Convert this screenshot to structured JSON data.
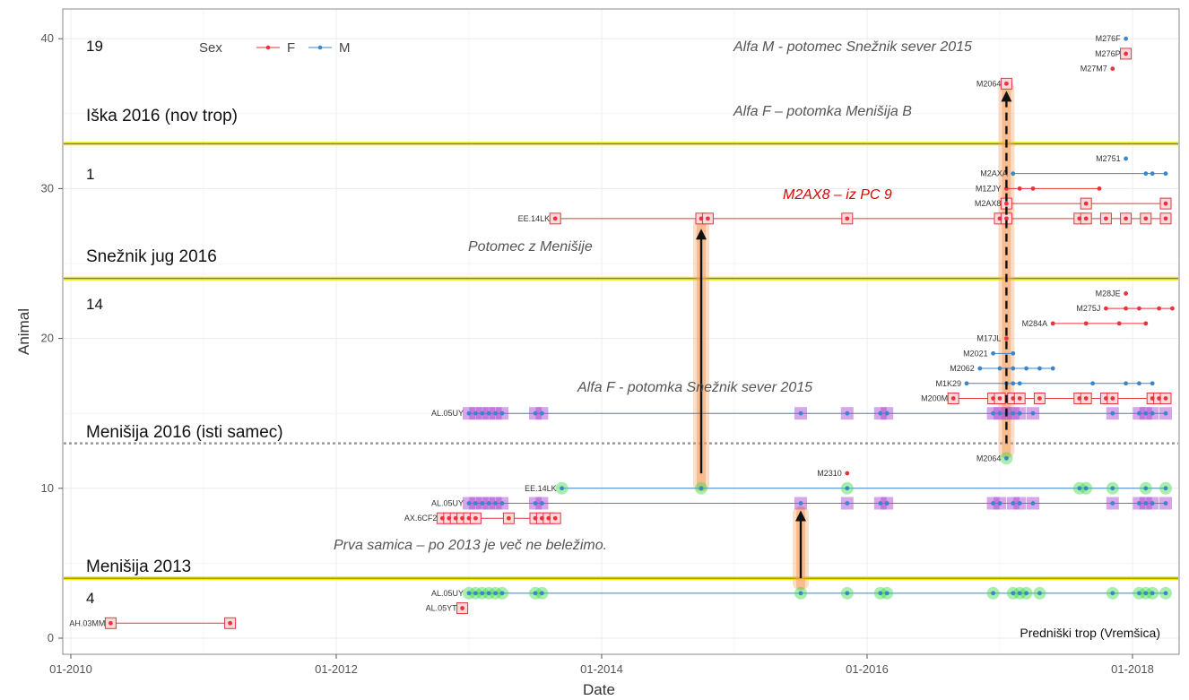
{
  "colors": {
    "F": "#e8343f",
    "M": "#3a86c8",
    "highlight": "#b04bd6",
    "highlight_green": "#3ddc4a",
    "territory_line": "#eeee00",
    "pack_divider": "#999999",
    "arrow_glow": "#f5a060",
    "background": "#ffffff",
    "grid": "#ececec"
  },
  "legend": {
    "title": "Sex",
    "F": "F",
    "M": "M"
  },
  "zone_labels": [
    {
      "text": "Iška 2016 (nov trop)"
    },
    {
      "text": "Snežnik jug 2016"
    },
    {
      "text": "Menišija 2016 (isti samec)"
    },
    {
      "text": "Menišija 2013"
    }
  ],
  "zone_counts": [
    {
      "text": "19"
    },
    {
      "text": "1"
    },
    {
      "text": "14"
    },
    {
      "text": "4"
    }
  ],
  "annotations": [
    {
      "text": "Alfa M - potomec Snežnik sever 2015",
      "style": "gray"
    },
    {
      "text": "Alfa F – potomka Menišija B",
      "style": "gray"
    },
    {
      "text": "M2AX8 – iz PC 9",
      "style": "red"
    },
    {
      "text": "Potomec z Menišije",
      "style": "gray"
    },
    {
      "text": "Alfa F - potomka Snežnik sever 2015",
      "style": "gray"
    },
    {
      "text": "Prva samica – po 2013 je več ne beležimo.",
      "style": "gray"
    }
  ],
  "footnote": "Predniški trop (Vremšica)",
  "chart_data": {
    "type": "scatter",
    "xlabel": "Date",
    "ylabel": "Animal",
    "x_ticks": [
      "01-2010",
      "01-2012",
      "01-2014",
      "01-2016",
      "01-2018"
    ],
    "y_ticks": [
      "0",
      "10",
      "20",
      "30",
      "40"
    ],
    "xlim": [
      2009.9,
      2018.6
    ],
    "ylim": [
      -0.6,
      41.5
    ],
    "grid": true,
    "legend_position": "top-left",
    "territory_lines_y": [
      4,
      24,
      33
    ],
    "pack_divider_y": [
      13
    ],
    "series": [
      {
        "label": "AH.03MM",
        "sex": "F",
        "y": 1,
        "dates": [
          2010.3,
          2011.2
        ],
        "boxed": [
          2010.3,
          2011.2
        ]
      },
      {
        "label": "AL.05YT",
        "sex": "F",
        "y": 2,
        "dates": [
          2012.95
        ],
        "boxed": [
          2012.95
        ]
      },
      {
        "label": "AL.05UY",
        "sex": "M",
        "y": 3,
        "dates": [
          2013.0,
          2013.05,
          2013.1,
          2013.15,
          2013.2,
          2013.25,
          2013.5,
          2013.55,
          2015.5,
          2015.85,
          2016.1,
          2016.15,
          2016.95,
          2017.1,
          2017.15,
          2017.2,
          2017.3,
          2017.85,
          2018.05,
          2018.1,
          2018.15,
          2018.25
        ],
        "green": [
          2013.0,
          2013.05,
          2013.1,
          2013.15,
          2013.2,
          2013.25,
          2013.5,
          2013.55,
          2015.5,
          2015.85,
          2016.1,
          2016.15,
          2016.95,
          2017.1,
          2017.15,
          2017.2,
          2017.3,
          2017.85,
          2018.05,
          2018.1,
          2018.15,
          2018.25
        ]
      },
      {
        "label": "AX.6CF2",
        "sex": "F",
        "y": 8,
        "dates": [
          2012.8,
          2012.85,
          2012.9,
          2012.95,
          2013.0,
          2013.05,
          2013.3,
          2013.5,
          2013.55,
          2013.6,
          2013.65
        ],
        "boxed": [
          2012.8,
          2012.85,
          2012.9,
          2012.95,
          2013.0,
          2013.05,
          2013.3,
          2013.5,
          2013.55,
          2013.6,
          2013.65
        ]
      },
      {
        "label": "AL.05UY",
        "sex": "M",
        "y": 9,
        "dates": [
          2013.0,
          2013.05,
          2013.1,
          2013.15,
          2013.2,
          2013.25,
          2013.5,
          2013.55,
          2015.5,
          2015.85,
          2016.1,
          2016.15,
          2016.95,
          2017.0,
          2017.1,
          2017.15,
          2017.25,
          2017.85,
          2018.05,
          2018.1,
          2018.15,
          2018.25
        ],
        "purple": [
          2013.0,
          2013.05,
          2013.1,
          2013.15,
          2013.2,
          2013.25,
          2013.5,
          2013.55,
          2015.5,
          2015.85,
          2016.1,
          2016.15,
          2016.95,
          2017.0,
          2017.1,
          2017.15,
          2017.25,
          2017.85,
          2018.05,
          2018.1,
          2018.15,
          2018.25
        ]
      },
      {
        "label": "EE.14LK",
        "sex": "M",
        "y": 10,
        "dates": [
          2013.7,
          2014.75,
          2015.85,
          2017.6,
          2017.65,
          2017.85,
          2018.1,
          2018.25
        ],
        "green": [
          2013.7,
          2014.75,
          2015.85,
          2017.6,
          2017.65,
          2017.85,
          2018.1,
          2018.25
        ]
      },
      {
        "label": "M2310",
        "sex": "F",
        "y": 11,
        "dates": [
          2015.85
        ]
      },
      {
        "label": "M2064",
        "sex": "M",
        "y": 12,
        "dates": [
          2017.05
        ],
        "green": [
          2017.05
        ]
      },
      {
        "label": "AL.05UY",
        "sex": "M",
        "y": 15,
        "dates": [
          2013.0,
          2013.05,
          2013.1,
          2013.15,
          2013.2,
          2013.25,
          2013.5,
          2013.55,
          2015.5,
          2015.85,
          2016.1,
          2016.15,
          2016.95,
          2017.0,
          2017.05,
          2017.1,
          2017.15,
          2017.25,
          2017.85,
          2018.05,
          2018.1,
          2018.15,
          2018.25
        ],
        "purple": [
          2013.0,
          2013.05,
          2013.1,
          2013.15,
          2013.2,
          2013.25,
          2013.5,
          2013.55,
          2015.5,
          2015.85,
          2016.1,
          2016.15,
          2016.95,
          2017.0,
          2017.05,
          2017.1,
          2017.15,
          2017.25,
          2017.85,
          2018.05,
          2018.1,
          2018.15,
          2018.25
        ]
      },
      {
        "label": "M200M",
        "sex": "F",
        "y": 16,
        "dates": [
          2016.65,
          2016.95,
          2017.0,
          2017.1,
          2017.15,
          2017.3,
          2017.6,
          2017.65,
          2017.8,
          2017.85,
          2018.15,
          2018.2,
          2018.25
        ],
        "boxed": [
          2016.65,
          2016.95,
          2017.0,
          2017.1,
          2017.15,
          2017.3,
          2017.6,
          2017.65,
          2017.8,
          2017.85,
          2018.15,
          2018.2,
          2018.25
        ]
      },
      {
        "label": "M1K29",
        "sex": "M",
        "y": 17,
        "dates": [
          2016.75,
          2017.05,
          2017.1,
          2017.15,
          2017.7,
          2017.95,
          2018.05,
          2018.15
        ]
      },
      {
        "label": "M2062",
        "sex": "M",
        "y": 18,
        "dates": [
          2016.85,
          2017.0,
          2017.1,
          2017.2,
          2017.3,
          2017.4
        ]
      },
      {
        "label": "M2021",
        "sex": "M",
        "y": 19,
        "dates": [
          2016.95,
          2017.1
        ]
      },
      {
        "label": "M17JL",
        "sex": "F",
        "y": 20,
        "dates": [
          2017.05
        ]
      },
      {
        "label": "M284A",
        "sex": "F",
        "y": 21,
        "dates": [
          2017.4,
          2017.65,
          2017.9,
          2018.1
        ]
      },
      {
        "label": "M275J",
        "sex": "F",
        "y": 22,
        "dates": [
          2017.8,
          2017.95,
          2018.05,
          2018.2,
          2018.3
        ]
      },
      {
        "label": "M28JE",
        "sex": "F",
        "y": 23,
        "dates": [
          2017.95
        ]
      },
      {
        "label": "EE.14LK",
        "sex": "F",
        "y": 28,
        "dates": [
          2013.65,
          2014.75,
          2014.8,
          2015.85,
          2017.0,
          2017.05,
          2017.6,
          2017.65,
          2017.8,
          2017.95,
          2018.1,
          2018.25
        ],
        "boxed": [
          2013.65,
          2014.75,
          2014.8,
          2015.85,
          2017.0,
          2017.05,
          2017.6,
          2017.65,
          2017.8,
          2017.95,
          2018.1,
          2018.25
        ]
      },
      {
        "label": "M2AX8",
        "sex": "F",
        "y": 29,
        "dates": [
          2017.05,
          2017.65,
          2018.25
        ],
        "boxed": [
          2017.05,
          2017.65,
          2018.25
        ]
      },
      {
        "label": "M1ZJY",
        "sex": "F",
        "y": 30,
        "dates": [
          2017.05,
          2017.15,
          2017.25,
          2017.75
        ]
      },
      {
        "label": "M2AXA",
        "sex": "M",
        "y": 31,
        "dates": [
          2017.1,
          2018.1,
          2018.15,
          2018.25
        ]
      },
      {
        "label": "M2751",
        "sex": "M",
        "y": 32,
        "dates": [
          2017.95
        ]
      },
      {
        "label": "M2064",
        "sex": "F",
        "y": 37,
        "dates": [
          2017.05
        ],
        "boxed": [
          2017.05
        ]
      },
      {
        "label": "M27M7",
        "sex": "F",
        "y": 38,
        "dates": [
          2017.85
        ]
      },
      {
        "label": "M276P",
        "sex": "F",
        "y": 39,
        "dates": [
          2017.95
        ],
        "boxed": [
          2017.95
        ]
      },
      {
        "label": "M276F",
        "sex": "M",
        "y": 40,
        "dates": [
          2017.95
        ]
      }
    ]
  }
}
